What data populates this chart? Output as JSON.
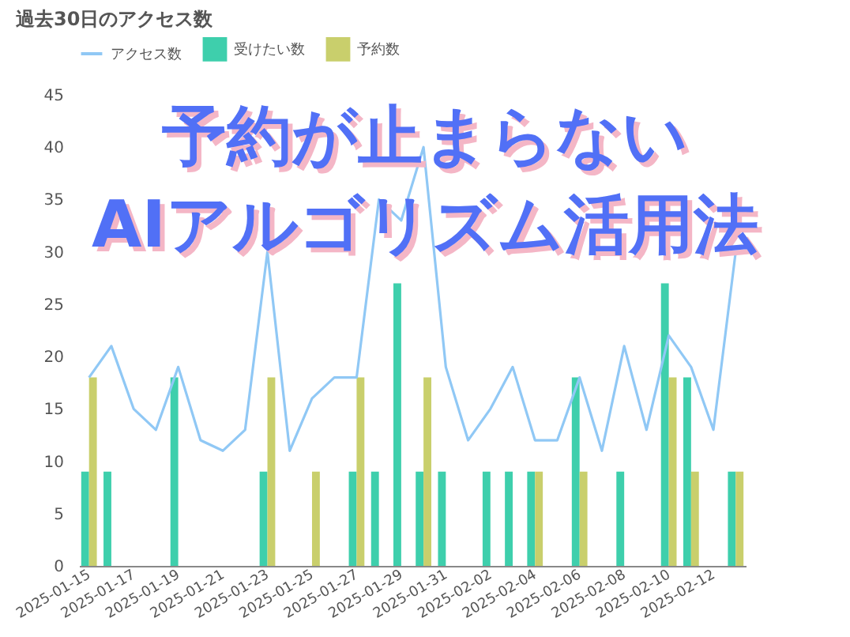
{
  "chart_data": {
    "type": "bar",
    "title": "過去30日のアクセス数",
    "annotations": [
      "予約が止まらない",
      "AIアルゴリズム活用法"
    ],
    "categories": [
      "2025-01-15",
      null,
      "2025-01-17",
      null,
      "2025-01-19",
      null,
      "2025-01-21",
      null,
      "2025-01-23",
      null,
      "2025-01-25",
      null,
      "2025-01-27",
      null,
      "2025-01-29",
      null,
      "2025-01-31",
      null,
      "2025-02-02",
      null,
      "2025-02-04",
      null,
      "2025-02-06",
      null,
      "2025-02-08",
      null,
      "2025-02-10",
      null,
      "2025-02-12",
      null
    ],
    "series": [
      {
        "name": "アクセス数",
        "type": "line",
        "color": "#90c8f5",
        "values": [
          18,
          21,
          15,
          13,
          19,
          12,
          11,
          13,
          30,
          11,
          16,
          18,
          18,
          35,
          33,
          40,
          19,
          12,
          15,
          19,
          12,
          12,
          18,
          11,
          21,
          13,
          22,
          19,
          13,
          30
        ]
      },
      {
        "name": "受けたい数",
        "color": "#3ecfac",
        "values": [
          9,
          9,
          0,
          0,
          18,
          0,
          0,
          0,
          9,
          0,
          0,
          0,
          9,
          9,
          27,
          9,
          9,
          0,
          9,
          9,
          9,
          0,
          18,
          0,
          9,
          0,
          27,
          18,
          0,
          9
        ]
      },
      {
        "name": "予約数",
        "color": "#c9cf6c",
        "values": [
          18,
          0,
          0,
          0,
          0,
          0,
          0,
          0,
          18,
          0,
          9,
          0,
          18,
          0,
          0,
          18,
          0,
          0,
          0,
          0,
          9,
          0,
          9,
          0,
          0,
          0,
          18,
          9,
          0,
          9
        ]
      }
    ],
    "ylim": [
      0,
      45
    ],
    "yticks": [
      0,
      5,
      10,
      15,
      20,
      25,
      30,
      35,
      40,
      45
    ],
    "grid": false,
    "legend": "top"
  }
}
